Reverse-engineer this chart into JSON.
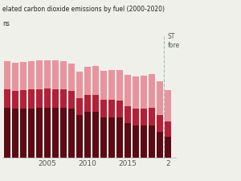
{
  "title_line1": "elated carbon dioxide emissions by fuel (2000-2020)",
  "title_line2": "ns",
  "years": [
    2000,
    2001,
    2002,
    2003,
    2004,
    2005,
    2006,
    2007,
    2008,
    2009,
    2010,
    2011,
    2012,
    2013,
    2014,
    2015,
    2016,
    2017,
    2018,
    2019,
    2020
  ],
  "coal": [
    2.12,
    2.1,
    2.1,
    2.11,
    2.13,
    2.14,
    2.12,
    2.13,
    2.08,
    1.83,
    1.95,
    1.95,
    1.72,
    1.73,
    1.7,
    1.47,
    1.36,
    1.37,
    1.37,
    1.08,
    0.89
  ],
  "petroleum": [
    0.79,
    0.77,
    0.79,
    0.8,
    0.81,
    0.81,
    0.79,
    0.78,
    0.76,
    0.71,
    0.73,
    0.73,
    0.74,
    0.73,
    0.73,
    0.73,
    0.74,
    0.74,
    0.75,
    0.74,
    0.65
  ],
  "natural_gas": [
    1.22,
    1.2,
    1.22,
    1.22,
    1.23,
    1.23,
    1.25,
    1.22,
    1.2,
    1.15,
    1.22,
    1.23,
    1.26,
    1.28,
    1.32,
    1.34,
    1.38,
    1.4,
    1.47,
    1.45,
    1.35
  ],
  "color_coal": "#5c0a14",
  "color_petroleum": "#b52039",
  "color_natural_gas": "#e8949e",
  "forecast_year": 2019,
  "background_color": "#f0f0eb",
  "annotation_text": "ST\nfore",
  "xlim_left": 1999.4,
  "xlim_right": 2021.0,
  "ylim": [
    0,
    5.2
  ],
  "bar_width": 0.75
}
